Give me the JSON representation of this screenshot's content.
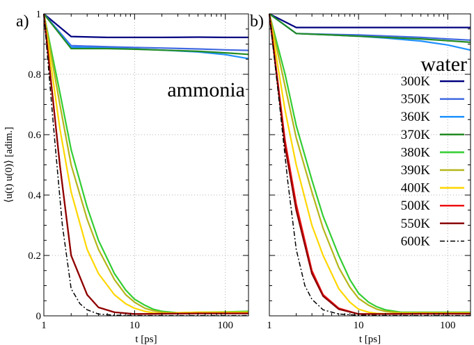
{
  "chart_data": [
    {
      "type": "line",
      "panel_label": "a)",
      "annotation": "ammonia",
      "xlabel": "t [ps]",
      "ylabel": "⟨u(t) u(0)⟩ [adim.]",
      "xscale": "log",
      "xlim": [
        1,
        180
      ],
      "ylim": [
        0,
        1
      ],
      "xticks": [
        1,
        10,
        100
      ],
      "xtick_labels": [
        "1",
        "10",
        "100"
      ],
      "yticks": [
        0,
        0.2,
        0.4,
        0.6,
        0.8,
        1
      ],
      "ytick_labels": [
        "0",
        "0.2",
        "0.4",
        "0.6",
        "0.8",
        "1"
      ],
      "grid": true,
      "series": [
        {
          "name": "300K",
          "color": "#000080",
          "style": "solid",
          "x": [
            1,
            2,
            5,
            10,
            20,
            50,
            100,
            180
          ],
          "y": [
            1,
            0.925,
            0.922,
            0.922,
            0.922,
            0.923,
            0.922,
            0.922
          ]
        },
        {
          "name": "350K",
          "color": "#4169e1",
          "style": "solid",
          "x": [
            1,
            2,
            5,
            10,
            20,
            50,
            100,
            180
          ],
          "y": [
            1,
            0.895,
            0.891,
            0.889,
            0.887,
            0.884,
            0.881,
            0.879
          ]
        },
        {
          "name": "360K",
          "color": "#1e90ff",
          "style": "solid",
          "x": [
            1,
            2,
            5,
            10,
            20,
            50,
            100,
            180
          ],
          "y": [
            1,
            0.89,
            0.887,
            0.884,
            0.88,
            0.874,
            0.865,
            0.852
          ]
        },
        {
          "name": "370K",
          "color": "#228b22",
          "style": "solid",
          "x": [
            1,
            2,
            5,
            10,
            20,
            50,
            100,
            180
          ],
          "y": [
            1,
            0.885,
            0.885,
            0.883,
            0.88,
            0.876,
            0.871,
            0.866
          ]
        },
        {
          "name": "380K",
          "color": "#32cd32",
          "style": "solid",
          "x": [
            1,
            1.5,
            2,
            3,
            4,
            6,
            8,
            10,
            13,
            16,
            20,
            30,
            50,
            100,
            180
          ],
          "y": [
            1,
            0.74,
            0.55,
            0.36,
            0.25,
            0.14,
            0.085,
            0.055,
            0.035,
            0.022,
            0.015,
            0.01,
            0.012,
            0.013,
            0.015
          ]
        },
        {
          "name": "390K",
          "color": "#b5b51a",
          "style": "solid",
          "x": [
            1,
            1.5,
            2,
            3,
            4,
            6,
            8,
            10,
            13,
            16,
            20,
            30,
            50,
            100,
            180
          ],
          "y": [
            1,
            0.7,
            0.5,
            0.32,
            0.22,
            0.12,
            0.07,
            0.045,
            0.025,
            0.017,
            0.012,
            0.008,
            0.01,
            0.01,
            0.012
          ]
        },
        {
          "name": "400K",
          "color": "#ffd700",
          "style": "solid",
          "x": [
            1,
            1.5,
            2,
            3,
            4,
            6,
            8,
            10,
            13,
            16,
            20,
            30,
            50,
            100,
            180
          ],
          "y": [
            1,
            0.62,
            0.41,
            0.22,
            0.14,
            0.07,
            0.04,
            0.025,
            0.015,
            0.01,
            0.008,
            0.01,
            0.012,
            0.012,
            0.012
          ]
        },
        {
          "name": "500K",
          "color": "#ee1111",
          "style": "solid",
          "x": [
            1,
            1.5,
            2,
            3,
            4,
            6,
            10,
            20,
            50,
            100,
            180
          ],
          "y": [
            1,
            0.5,
            0.2,
            0.07,
            0.028,
            0.012,
            0.006,
            0.007,
            0.008,
            0.008,
            0.008
          ]
        },
        {
          "name": "550K",
          "color": "#8b0000",
          "style": "solid",
          "x": [
            1,
            1.5,
            2,
            3,
            4,
            6,
            10,
            20,
            50,
            100,
            180
          ],
          "y": [
            1,
            0.5,
            0.2,
            0.07,
            0.028,
            0.012,
            0.006,
            0.007,
            0.008,
            0.008,
            0.008
          ]
        },
        {
          "name": "600K",
          "color": "#000000",
          "style": "dashdot",
          "x": [
            1,
            1.3,
            1.6,
            2,
            2.5,
            3,
            4,
            6,
            10,
            20,
            50,
            180
          ],
          "y": [
            1,
            0.6,
            0.3,
            0.09,
            0.04,
            0.02,
            0.006,
            0.002,
            0.001,
            0.001,
            0.001,
            0.001
          ]
        }
      ]
    },
    {
      "type": "line",
      "panel_label": "b)",
      "annotation": "water",
      "xlabel": "t [ps]",
      "ylabel": "",
      "xscale": "log",
      "xlim": [
        1,
        180
      ],
      "ylim": [
        0,
        1
      ],
      "xticks": [
        1,
        10,
        100
      ],
      "xtick_labels": [
        "1",
        "10",
        "100"
      ],
      "yticks": [
        0,
        0.2,
        0.4,
        0.6,
        0.8,
        1
      ],
      "ytick_labels": [],
      "grid": true,
      "legend": "right",
      "series": [
        {
          "name": "300K",
          "color": "#000080",
          "style": "solid",
          "x": [
            1,
            2,
            5,
            10,
            20,
            50,
            100,
            180
          ],
          "y": [
            1,
            0.955,
            0.955,
            0.955,
            0.955,
            0.955,
            0.955,
            0.955
          ]
        },
        {
          "name": "350K",
          "color": "#4169e1",
          "style": "solid",
          "x": [
            1,
            2,
            5,
            10,
            20,
            50,
            100,
            180
          ],
          "y": [
            1,
            0.935,
            0.932,
            0.93,
            0.927,
            0.922,
            0.917,
            0.913
          ]
        },
        {
          "name": "360K",
          "color": "#1e90ff",
          "style": "solid",
          "x": [
            1,
            2,
            5,
            10,
            20,
            50,
            100,
            180
          ],
          "y": [
            1,
            0.935,
            0.93,
            0.926,
            0.92,
            0.91,
            0.897,
            0.88
          ]
        },
        {
          "name": "370K",
          "color": "#228b22",
          "style": "solid",
          "x": [
            1,
            2,
            5,
            10,
            20,
            50,
            100,
            180
          ],
          "y": [
            1,
            0.935,
            0.93,
            0.926,
            0.922,
            0.917,
            0.911,
            0.906
          ]
        },
        {
          "name": "380K",
          "color": "#32cd32",
          "style": "solid",
          "x": [
            1,
            1.5,
            2,
            3,
            4,
            6,
            8,
            10,
            13,
            16,
            20,
            30,
            50,
            100,
            180
          ],
          "y": [
            1,
            0.8,
            0.63,
            0.45,
            0.33,
            0.2,
            0.12,
            0.075,
            0.045,
            0.03,
            0.02,
            0.012,
            0.012,
            0.012,
            0.012
          ]
        },
        {
          "name": "390K",
          "color": "#b5b51a",
          "style": "solid",
          "x": [
            1,
            1.5,
            2,
            3,
            4,
            6,
            8,
            10,
            13,
            16,
            20,
            30,
            50,
            100,
            180
          ],
          "y": [
            1,
            0.76,
            0.59,
            0.41,
            0.29,
            0.16,
            0.095,
            0.058,
            0.035,
            0.022,
            0.015,
            0.01,
            0.01,
            0.01,
            0.01
          ]
        },
        {
          "name": "400K",
          "color": "#ffd700",
          "style": "solid",
          "x": [
            1,
            1.5,
            2,
            3,
            4,
            6,
            8,
            10,
            13,
            16,
            20,
            30,
            50,
            100,
            180
          ],
          "y": [
            1,
            0.68,
            0.5,
            0.3,
            0.2,
            0.09,
            0.045,
            0.022,
            0.012,
            0.008,
            0.007,
            0.008,
            0.009,
            0.009,
            0.009
          ]
        },
        {
          "name": "500K",
          "color": "#ee1111",
          "style": "solid",
          "x": [
            1,
            1.5,
            2,
            3,
            4,
            6,
            10,
            20,
            50,
            100,
            180
          ],
          "y": [
            1,
            0.58,
            0.37,
            0.15,
            0.07,
            0.025,
            0.006,
            0.006,
            0.007,
            0.007,
            0.007
          ]
        },
        {
          "name": "550K",
          "color": "#8b0000",
          "style": "solid",
          "x": [
            1,
            1.5,
            2,
            3,
            4,
            6,
            10,
            20,
            50,
            100,
            180
          ],
          "y": [
            1,
            0.56,
            0.35,
            0.14,
            0.065,
            0.022,
            0.006,
            0.006,
            0.007,
            0.007,
            0.007
          ]
        },
        {
          "name": "600K",
          "color": "#000000",
          "style": "dashdot",
          "x": [
            1,
            1.3,
            1.6,
            2,
            2.5,
            3,
            4,
            6,
            10,
            20,
            50,
            180
          ],
          "y": [
            1,
            0.7,
            0.45,
            0.22,
            0.1,
            0.055,
            0.02,
            0.006,
            0.002,
            0.001,
            0.001,
            0.001
          ]
        }
      ]
    }
  ]
}
